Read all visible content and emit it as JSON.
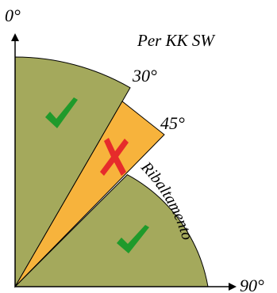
{
  "title": "Per KK SW",
  "axes": {
    "vertical_label": "0°",
    "horizontal_label": "90°"
  },
  "angle_labels": {
    "a30": "30°",
    "a45": "45°"
  },
  "curved_label": "Ribaltamento",
  "sectors": [
    {
      "name": "sector-0-30",
      "from_deg": 0,
      "to_deg": 30,
      "status": "ok",
      "mark_icon": "check-icon"
    },
    {
      "name": "sector-30-45",
      "from_deg": 30,
      "to_deg": 45,
      "status": "not-ok",
      "mark_icon": "cross-icon"
    },
    {
      "name": "sector-45-90",
      "from_deg": 45,
      "to_deg": 90,
      "status": "ok",
      "mark_icon": "check-icon"
    }
  ],
  "colors": {
    "ok_fill": "#a4a95c",
    "not_ok_fill": "#f7b33c",
    "check": "#1f9a2b",
    "cross": "#e62b2b",
    "outline": "#000000"
  }
}
